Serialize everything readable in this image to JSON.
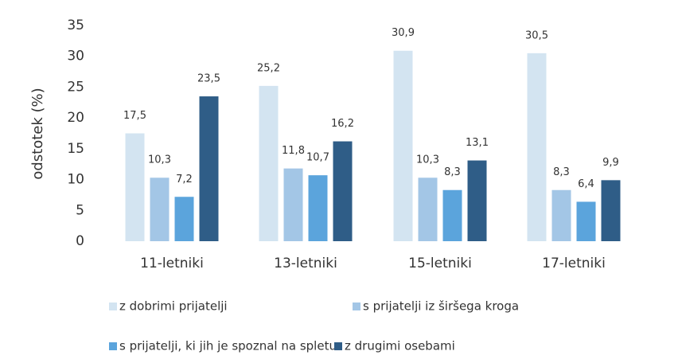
{
  "chart_data": {
    "type": "bar",
    "ylabel": "odstotek (%)",
    "categories": [
      "11-letniki",
      "13-letniki",
      "15-letniki",
      "17-letniki"
    ],
    "series": [
      {
        "name": "z dobrimi prijatelji",
        "color": "#d3e4f1",
        "values": [
          17.5,
          25.2,
          30.9,
          30.5
        ],
        "value_labels": [
          "17,5",
          "25,2",
          "30,9",
          "30,5"
        ]
      },
      {
        "name": "s prijatelji iz širšega kroga",
        "color": "#a3c6e6",
        "values": [
          10.3,
          11.8,
          10.3,
          8.3
        ],
        "value_labels": [
          "10,3",
          "11,8",
          "10,3",
          "8,3"
        ]
      },
      {
        "name": "s prijatelji, ki jih je spoznal na spletu",
        "color": "#5ba4dc",
        "values": [
          7.2,
          10.7,
          8.3,
          6.4
        ],
        "value_labels": [
          "7,2",
          "10,7",
          "8,3",
          "6,4"
        ]
      },
      {
        "name": "z drugimi osebami",
        "color": "#2f5d87",
        "values": [
          23.5,
          16.2,
          13.1,
          9.9
        ],
        "value_labels": [
          "23,5",
          "16,2",
          "13,1",
          "9,9"
        ]
      }
    ],
    "ylim": [
      0,
      35
    ],
    "yticks": [
      0,
      5,
      10,
      15,
      20,
      25,
      30,
      35
    ],
    "grid": false
  }
}
